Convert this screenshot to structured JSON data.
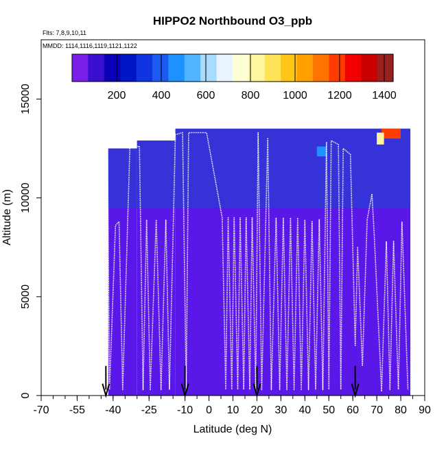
{
  "chart_data": {
    "type": "heatmap",
    "title": "HIPPO2 Northbound O3_ppb",
    "flights_label": "Flts: 7,8,9,10,11",
    "dates_label": "MMDD: 1114,1116,1119,1121,1122",
    "xlabel": "Latitude (deg N)",
    "ylabel": "Altitude (m)",
    "xlim": [
      -70,
      90
    ],
    "ylim": [
      0,
      18000
    ],
    "x_ticks": [
      -70,
      -55,
      -40,
      -25,
      -10,
      0,
      10,
      20,
      30,
      40,
      50,
      60,
      70,
      80,
      90
    ],
    "y_ticks": [
      0,
      5000,
      10000,
      15000
    ],
    "colorbar": {
      "min": 0,
      "max": 1440,
      "tick_values": [
        200,
        400,
        600,
        800,
        1000,
        1200,
        1400
      ],
      "colors": [
        "#7a1fe8",
        "#3b0fd0",
        "#0a00b8",
        "#0014c8",
        "#1034e0",
        "#1c5af0",
        "#1e90ff",
        "#50b4ff",
        "#a8dcff",
        "#e8f4ff",
        "#ffffd6",
        "#fff5a0",
        "#ffe45a",
        "#ffc61a",
        "#ff9f00",
        "#ff7400",
        "#ff3c00",
        "#f20000",
        "#c80000",
        "#9a1f1f"
      ]
    },
    "colors": {
      "background_field": "#5a18e8",
      "upper_field": "#2f38d4",
      "track": "#ffffff",
      "arrow": "#000000"
    },
    "field_ranges": [
      {
        "lat_from": -42,
        "lat_to": -30,
        "alt_top": 12500
      },
      {
        "lat_from": -30,
        "lat_to": -14,
        "alt_top": 12900
      },
      {
        "lat_from": -14,
        "lat_to": 84,
        "alt_top": 13500
      }
    ],
    "high_o3_patches": [
      {
        "lat_from": 72,
        "lat_to": 80,
        "alt_from": 13000,
        "alt_to": 13500,
        "value": 1200
      },
      {
        "lat_from": 70,
        "lat_to": 73,
        "alt_from": 12700,
        "alt_to": 13300,
        "value": 800
      },
      {
        "lat_from": 45,
        "lat_to": 49,
        "alt_from": 12100,
        "alt_to": 12600,
        "value": 500
      }
    ],
    "flight_track": [
      [
        -42.5,
        8500
      ],
      [
        -42.3,
        12100
      ],
      [
        -41.5,
        300
      ],
      [
        -39,
        8600
      ],
      [
        -37.5,
        8800
      ],
      [
        -36,
        300
      ],
      [
        -33,
        12600
      ],
      [
        -29,
        12600
      ],
      [
        -27.5,
        300
      ],
      [
        -26,
        8900
      ],
      [
        -24.5,
        300
      ],
      [
        -22,
        8900
      ],
      [
        -20,
        300
      ],
      [
        -18,
        8900
      ],
      [
        -16.5,
        300
      ],
      [
        -14,
        13200
      ],
      [
        -11,
        13300
      ],
      [
        -9.5,
        300
      ],
      [
        -8.5,
        13300
      ],
      [
        -1,
        13300
      ],
      [
        5.5,
        9000
      ],
      [
        7,
        300
      ],
      [
        8,
        9000
      ],
      [
        9.5,
        300
      ],
      [
        10.5,
        9000
      ],
      [
        12,
        300
      ],
      [
        13,
        9000
      ],
      [
        14.5,
        300
      ],
      [
        15.5,
        9000
      ],
      [
        17,
        300
      ],
      [
        18,
        9000
      ],
      [
        19.5,
        300
      ],
      [
        20.5,
        13300
      ],
      [
        22,
        300
      ],
      [
        24.5,
        13000
      ],
      [
        26,
        300
      ],
      [
        28,
        9000
      ],
      [
        29.5,
        300
      ],
      [
        31,
        9000
      ],
      [
        32.5,
        300
      ],
      [
        34,
        9000
      ],
      [
        35.5,
        300
      ],
      [
        37,
        9000
      ],
      [
        38.5,
        300
      ],
      [
        40,
        8900
      ],
      [
        41.5,
        300
      ],
      [
        43,
        8800
      ],
      [
        44.5,
        300
      ],
      [
        46,
        8900
      ],
      [
        47.5,
        300
      ],
      [
        49,
        12800
      ],
      [
        50,
        300
      ],
      [
        51,
        12900
      ],
      [
        54,
        12700
      ],
      [
        55,
        300
      ],
      [
        56,
        12500
      ],
      [
        59,
        12200
      ],
      [
        61,
        2500
      ],
      [
        62,
        7500
      ],
      [
        64,
        1500
      ],
      [
        66,
        8900
      ],
      [
        68,
        10200
      ],
      [
        69,
        8000
      ],
      [
        72,
        200
      ],
      [
        74,
        7800
      ],
      [
        75.5,
        300
      ],
      [
        77,
        7800
      ],
      [
        79,
        300
      ],
      [
        80.5,
        8800
      ],
      [
        83,
        300
      ]
    ],
    "arrow_latitudes": [
      -43,
      -10,
      20,
      61
    ]
  }
}
